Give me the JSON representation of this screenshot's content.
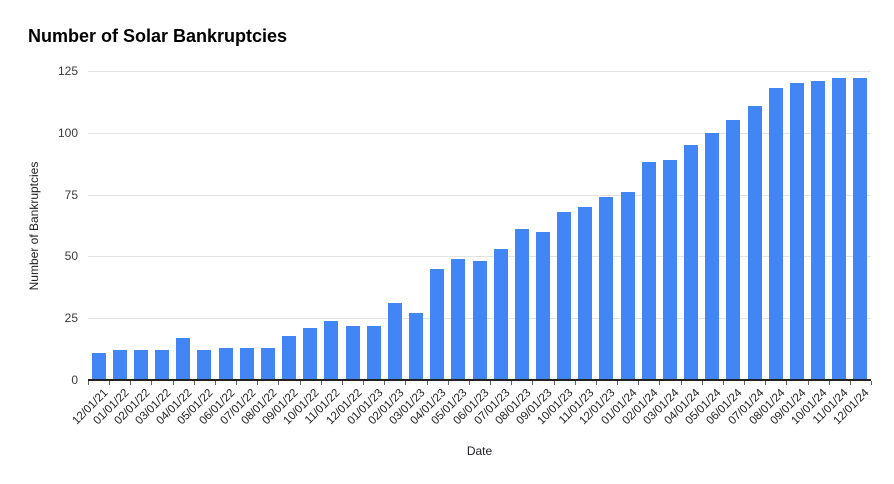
{
  "chart_data": {
    "type": "bar",
    "title": "Number of Solar Bankruptcies",
    "xlabel": "Date",
    "ylabel": "Number of Bankruptcies",
    "categories": [
      "12/01/21",
      "01/01/22",
      "02/01/22",
      "03/01/22",
      "04/01/22",
      "05/01/22",
      "06/01/22",
      "07/01/22",
      "08/01/22",
      "09/01/22",
      "10/01/22",
      "11/01/22",
      "12/01/22",
      "01/01/23",
      "02/01/23",
      "03/01/23",
      "04/01/23",
      "05/01/23",
      "06/01/23",
      "07/01/23",
      "08/01/23",
      "09/01/23",
      "10/01/23",
      "11/01/23",
      "12/01/23",
      "01/01/24",
      "02/01/24",
      "03/01/24",
      "04/01/24",
      "05/01/24",
      "06/01/24",
      "07/01/24",
      "08/01/24",
      "09/01/24",
      "10/01/24",
      "11/01/24",
      "12/01/24"
    ],
    "values": [
      11,
      12,
      12,
      12,
      17,
      12,
      13,
      13,
      13,
      18,
      21,
      24,
      22,
      22,
      31,
      27,
      45,
      49,
      48,
      53,
      61,
      60,
      68,
      70,
      74,
      76,
      88,
      89,
      95,
      100,
      105,
      111,
      118,
      120,
      121,
      122,
      122
    ],
    "ylim": [
      0,
      125
    ],
    "y_ticks": [
      0,
      25,
      50,
      75,
      100,
      125
    ],
    "grid": "horizontal-only",
    "legend": "none",
    "bar_color": "#4285f4",
    "background_color": "#ffffff"
  }
}
